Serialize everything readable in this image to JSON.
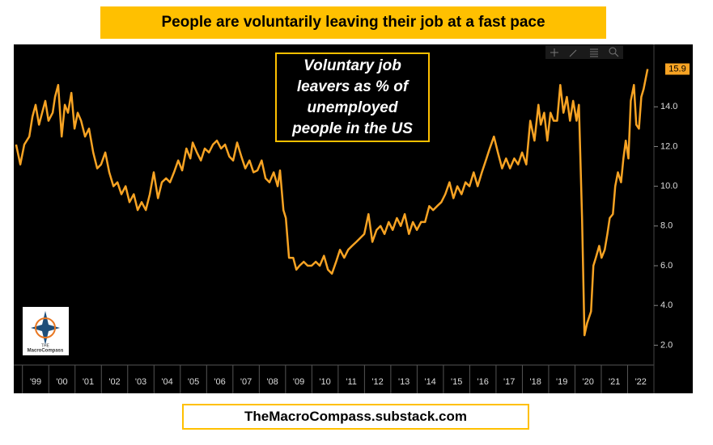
{
  "chart_data": {
    "type": "line",
    "title": "People are voluntarily leaving their job at a fast pace",
    "annotation": "Voluntary job leavers as % of unemployed people in the US",
    "x": [
      1998.76,
      1998.92,
      1999.07,
      1999.26,
      1999.38,
      1999.5,
      1999.63,
      1999.75,
      1999.87,
      1999.99,
      2000.15,
      2000.24,
      2000.36,
      2000.49,
      2000.61,
      2000.73,
      2000.86,
      2000.98,
      2001.1,
      2001.23,
      2001.38,
      2001.53,
      2001.69,
      2001.84,
      2001.99,
      2002.15,
      2002.3,
      2002.46,
      2002.61,
      2002.76,
      2002.92,
      2003.07,
      2003.23,
      2003.38,
      2003.53,
      2003.69,
      2003.84,
      2003.99,
      2004.15,
      2004.3,
      2004.46,
      2004.61,
      2004.76,
      2004.92,
      2005.07,
      2005.23,
      2005.38,
      2005.47,
      2005.63,
      2005.78,
      2005.93,
      2006.09,
      2006.24,
      2006.39,
      2006.55,
      2006.7,
      2006.86,
      2007.01,
      2007.16,
      2007.32,
      2007.47,
      2007.63,
      2007.78,
      2007.93,
      2008.09,
      2008.24,
      2008.39,
      2008.55,
      2008.7,
      2008.79,
      2008.92,
      2009.01,
      2009.13,
      2009.29,
      2009.41,
      2009.53,
      2009.69,
      2009.84,
      2009.99,
      2010.15,
      2010.3,
      2010.46,
      2010.61,
      2010.76,
      2010.92,
      2011.07,
      2011.23,
      2011.38,
      2011.53,
      2011.69,
      2011.84,
      2011.99,
      2012.15,
      2012.3,
      2012.46,
      2012.61,
      2012.76,
      2012.92,
      2013.07,
      2013.23,
      2013.38,
      2013.53,
      2013.69,
      2013.84,
      2013.99,
      2014.15,
      2014.3,
      2014.46,
      2014.61,
      2014.76,
      2014.92,
      2015.07,
      2015.23,
      2015.38,
      2015.53,
      2015.69,
      2015.84,
      2015.99,
      2016.15,
      2016.3,
      2016.46,
      2016.61,
      2016.76,
      2016.92,
      2017.07,
      2017.23,
      2017.38,
      2017.53,
      2017.69,
      2017.84,
      2017.99,
      2018.15,
      2018.3,
      2018.46,
      2018.61,
      2018.7,
      2018.83,
      2018.95,
      2019.07,
      2019.19,
      2019.32,
      2019.44,
      2019.56,
      2019.69,
      2019.81,
      2019.93,
      2020.06,
      2020.15,
      2020.27,
      2020.36,
      2020.46,
      2020.61,
      2020.7,
      2020.79,
      2020.92,
      2021.01,
      2021.13,
      2021.23,
      2021.32,
      2021.44,
      2021.53,
      2021.63,
      2021.75,
      2021.84,
      2021.93,
      2022.03,
      2022.12,
      2022.24,
      2022.33,
      2022.43,
      2022.52,
      2022.61,
      2022.7,
      2022.76
    ],
    "series": [
      {
        "color": "#f7a323",
        "values": [
          12.1,
          11.1,
          12.1,
          12.5,
          13.5,
          14.1,
          13.1,
          13.7,
          14.3,
          13.3,
          13.7,
          14.5,
          15.1,
          12.5,
          14.1,
          13.7,
          14.7,
          12.9,
          13.7,
          13.3,
          12.5,
          12.9,
          11.7,
          10.9,
          11.1,
          11.7,
          10.7,
          10.0,
          10.2,
          9.6,
          10.0,
          9.2,
          9.6,
          8.8,
          9.2,
          8.8,
          9.6,
          10.7,
          9.4,
          10.2,
          10.4,
          10.2,
          10.7,
          11.3,
          10.8,
          11.9,
          11.4,
          12.2,
          11.7,
          11.3,
          11.9,
          11.7,
          12.1,
          12.3,
          11.9,
          12.1,
          11.5,
          11.3,
          12.2,
          11.5,
          10.9,
          11.3,
          10.7,
          10.8,
          11.3,
          10.4,
          10.2,
          10.7,
          10.0,
          10.8,
          8.8,
          8.4,
          6.4,
          6.4,
          5.8,
          6.0,
          6.2,
          6.0,
          6.0,
          6.2,
          6.0,
          6.5,
          5.8,
          5.6,
          6.2,
          6.8,
          6.4,
          6.8,
          7.0,
          7.2,
          7.4,
          7.6,
          8.6,
          7.2,
          7.8,
          8.0,
          7.6,
          8.2,
          7.8,
          8.4,
          8.0,
          8.6,
          7.6,
          8.2,
          7.8,
          8.2,
          8.2,
          9.0,
          8.8,
          9.0,
          9.2,
          9.6,
          10.2,
          9.4,
          10.0,
          9.6,
          10.2,
          10.0,
          10.7,
          10.0,
          10.7,
          11.3,
          11.9,
          12.5,
          11.7,
          10.9,
          11.4,
          10.9,
          11.4,
          11.1,
          11.7,
          11.1,
          13.3,
          12.3,
          14.1,
          13.1,
          13.7,
          12.3,
          13.7,
          13.3,
          13.3,
          15.1,
          13.7,
          14.5,
          13.3,
          14.3,
          13.3,
          14.1,
          8.4,
          2.5,
          3.1,
          3.7,
          6.0,
          6.4,
          7.0,
          6.4,
          6.8,
          7.6,
          8.4,
          8.6,
          10.0,
          10.7,
          10.2,
          11.4,
          12.3,
          11.4,
          14.3,
          15.1,
          13.1,
          12.9,
          14.5,
          14.9,
          15.5,
          15.9
        ]
      }
    ],
    "xlim": [
      1998.67,
      2023.0
    ],
    "xticks": [
      {
        "value": 1999,
        "label": "'99"
      },
      {
        "value": 2000,
        "label": "'00"
      },
      {
        "value": 2001,
        "label": "'01"
      },
      {
        "value": 2002,
        "label": "'02"
      },
      {
        "value": 2003,
        "label": "'03"
      },
      {
        "value": 2004,
        "label": "'04"
      },
      {
        "value": 2005,
        "label": "'05"
      },
      {
        "value": 2006,
        "label": "'06"
      },
      {
        "value": 2007,
        "label": "'07"
      },
      {
        "value": 2008,
        "label": "'08"
      },
      {
        "value": 2009,
        "label": "'09"
      },
      {
        "value": 2010,
        "label": "'10"
      },
      {
        "value": 2011,
        "label": "'11"
      },
      {
        "value": 2012,
        "label": "'12"
      },
      {
        "value": 2013,
        "label": "'13"
      },
      {
        "value": 2014,
        "label": "'14"
      },
      {
        "value": 2015,
        "label": "'15"
      },
      {
        "value": 2016,
        "label": "'16"
      },
      {
        "value": 2017,
        "label": "'17"
      },
      {
        "value": 2018,
        "label": "'18"
      },
      {
        "value": 2019,
        "label": "'19"
      },
      {
        "value": 2020,
        "label": "'20"
      },
      {
        "value": 2021,
        "label": "'21"
      },
      {
        "value": 2022,
        "label": "'22"
      }
    ],
    "ylim": [
      1.0,
      17.1
    ],
    "yticks": [
      {
        "value": 2,
        "label": "2.0"
      },
      {
        "value": 4,
        "label": "4.0"
      },
      {
        "value": 6,
        "label": "6.0"
      },
      {
        "value": 8,
        "label": "8.0"
      },
      {
        "value": 10,
        "label": "10.0"
      },
      {
        "value": 12,
        "label": "12.0"
      },
      {
        "value": 14,
        "label": "14.0"
      }
    ],
    "grid": false
  },
  "footer": "TheMacroCompass.substack.com",
  "logo": {
    "line1": "THE",
    "line2": "MacroCompass"
  }
}
